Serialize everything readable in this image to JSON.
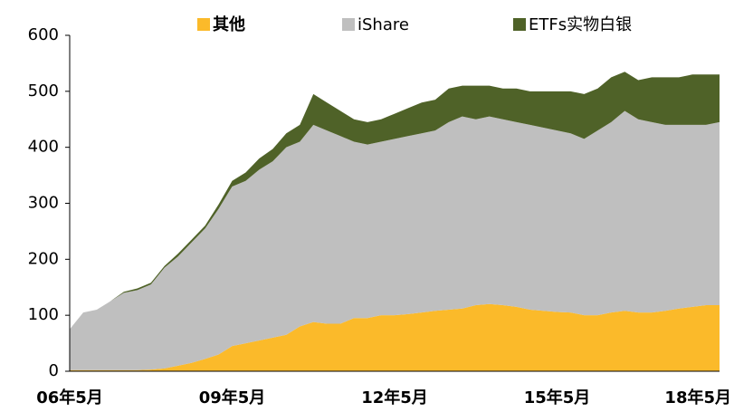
{
  "chart_data": {
    "type": "stacked_area",
    "categories": [
      "06年5月",
      null,
      null,
      null,
      null,
      null,
      null,
      null,
      null,
      null,
      null,
      null,
      "09年5月",
      null,
      null,
      null,
      null,
      null,
      null,
      null,
      null,
      null,
      null,
      null,
      "12年5月",
      null,
      null,
      null,
      null,
      null,
      null,
      null,
      null,
      null,
      null,
      null,
      "15年5月",
      null,
      null,
      null,
      null,
      null,
      null,
      null,
      null,
      null,
      null,
      null,
      "18年5月"
    ],
    "series": [
      {
        "name": "其他",
        "color": "#fbba2a",
        "values": [
          2,
          2,
          2,
          2,
          2,
          2,
          3,
          5,
          10,
          15,
          22,
          30,
          45,
          50,
          55,
          60,
          65,
          80,
          88,
          85,
          85,
          95,
          95,
          100,
          100,
          102,
          105,
          108,
          110,
          112,
          118,
          120,
          118,
          115,
          110,
          108,
          106,
          105,
          100,
          100,
          105,
          108,
          105,
          105,
          108,
          112,
          115,
          118,
          118
        ]
      },
      {
        "name": "iShare",
        "color": "#bfbfbf",
        "values": [
          73,
          103,
          108,
          123,
          138,
          143,
          152,
          180,
          195,
          215,
          233,
          260,
          285,
          290,
          305,
          315,
          335,
          330,
          352,
          345,
          335,
          315,
          310,
          310,
          315,
          318,
          320,
          322,
          335,
          343,
          332,
          335,
          332,
          330,
          330,
          327,
          324,
          320,
          315,
          330,
          340,
          357,
          345,
          340,
          332,
          328,
          325,
          322,
          327
        ]
      },
      {
        "name": "ETFs实物白银",
        "color": "#4f6228",
        "values": [
          0,
          0,
          0,
          0,
          2,
          3,
          3,
          3,
          5,
          5,
          5,
          8,
          10,
          15,
          20,
          22,
          25,
          30,
          55,
          50,
          45,
          40,
          40,
          40,
          45,
          50,
          55,
          55,
          60,
          55,
          60,
          55,
          55,
          60,
          60,
          65,
          70,
          75,
          80,
          75,
          80,
          70,
          70,
          80,
          85,
          85,
          90,
          90,
          85
        ]
      }
    ],
    "ylim": [
      0,
      600
    ],
    "yticks": [
      0,
      100,
      200,
      300,
      400,
      500,
      600
    ],
    "grid": false,
    "legend": "top"
  }
}
